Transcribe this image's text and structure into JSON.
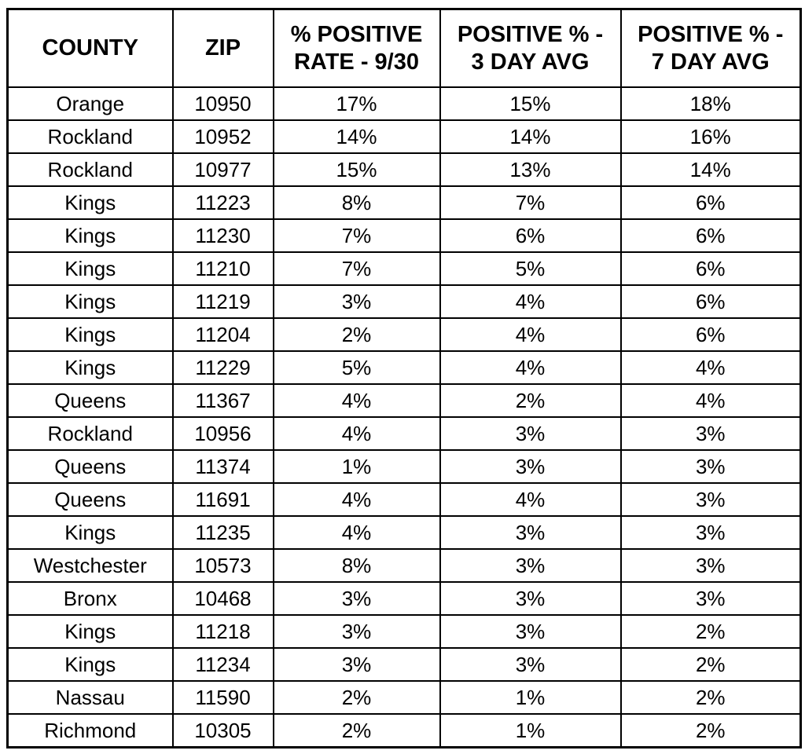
{
  "chart_data": {
    "type": "table",
    "columns": [
      "COUNTY",
      "ZIP",
      "% POSITIVE RATE - 9/30",
      "POSITIVE % - 3 DAY AVG",
      "POSITIVE % - 7 DAY AVG"
    ],
    "rows": [
      [
        "Orange",
        "10950",
        "17%",
        "15%",
        "18%"
      ],
      [
        "Rockland",
        "10952",
        "14%",
        "14%",
        "16%"
      ],
      [
        "Rockland",
        "10977",
        "15%",
        "13%",
        "14%"
      ],
      [
        "Kings",
        "11223",
        "8%",
        "7%",
        "6%"
      ],
      [
        "Kings",
        "11230",
        "7%",
        "6%",
        "6%"
      ],
      [
        "Kings",
        "11210",
        "7%",
        "5%",
        "6%"
      ],
      [
        "Kings",
        "11219",
        "3%",
        "4%",
        "6%"
      ],
      [
        "Kings",
        "11204",
        "2%",
        "4%",
        "6%"
      ],
      [
        "Kings",
        "11229",
        "5%",
        "4%",
        "4%"
      ],
      [
        "Queens",
        "11367",
        "4%",
        "2%",
        "4%"
      ],
      [
        "Rockland",
        "10956",
        "4%",
        "3%",
        "3%"
      ],
      [
        "Queens",
        "11374",
        "1%",
        "3%",
        "3%"
      ],
      [
        "Queens",
        "11691",
        "4%",
        "4%",
        "3%"
      ],
      [
        "Kings",
        "11235",
        "4%",
        "3%",
        "3%"
      ],
      [
        "Westchester",
        "10573",
        "8%",
        "3%",
        "3%"
      ],
      [
        "Bronx",
        "10468",
        "3%",
        "3%",
        "3%"
      ],
      [
        "Kings",
        "11218",
        "3%",
        "3%",
        "2%"
      ],
      [
        "Kings",
        "11234",
        "3%",
        "3%",
        "2%"
      ],
      [
        "Nassau",
        "11590",
        "2%",
        "1%",
        "2%"
      ],
      [
        "Richmond",
        "10305",
        "2%",
        "1%",
        "2%"
      ]
    ]
  },
  "colors": {
    "background": "#ffffff",
    "text": "#000000",
    "border": "#000000"
  }
}
